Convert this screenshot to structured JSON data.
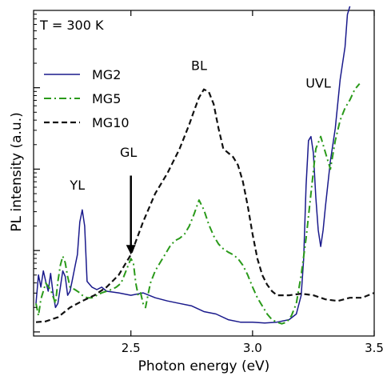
{
  "chart_data": {
    "type": "line",
    "xlabel": "Photon energy (eV)",
    "ylabel": "PL intensity (a.u.)",
    "xlim": [
      2.1,
      3.5
    ],
    "ylim": [
      -0.05,
      3.95
    ],
    "ylog": true,
    "xticks": [
      {
        "value": 2.5,
        "label": "2.5"
      },
      {
        "value": 3.0,
        "label": "3.0"
      },
      {
        "value": 3.5,
        "label": "3.5"
      }
    ],
    "yticks_major": [
      0,
      1,
      2,
      3
    ],
    "yticks_minor_per_decade": 8,
    "grid": false,
    "legend_position": "upper-left",
    "temperature_label": "T = 300 K",
    "series": [
      {
        "name": "MG2",
        "color": "#1a1a8c",
        "dash": "solid",
        "x": [
          2.11,
          2.12,
          2.13,
          2.14,
          2.15,
          2.16,
          2.17,
          2.18,
          2.19,
          2.2,
          2.21,
          2.22,
          2.23,
          2.24,
          2.25,
          2.26,
          2.27,
          2.28,
          2.29,
          2.3,
          2.31,
          2.32,
          2.34,
          2.36,
          2.38,
          2.4,
          2.45,
          2.5,
          2.55,
          2.6,
          2.65,
          2.7,
          2.75,
          2.8,
          2.85,
          2.9,
          2.95,
          3.0,
          3.05,
          3.1,
          3.15,
          3.18,
          3.2,
          3.21,
          3.22,
          3.23,
          3.24,
          3.25,
          3.26,
          3.27,
          3.28,
          3.29,
          3.3,
          3.32,
          3.34,
          3.36,
          3.38,
          3.39,
          3.4
        ],
        "values": [
          0.35,
          0.7,
          0.55,
          0.75,
          0.62,
          0.5,
          0.72,
          0.48,
          0.3,
          0.35,
          0.55,
          0.75,
          0.68,
          0.45,
          0.5,
          0.65,
          0.8,
          0.95,
          1.35,
          1.5,
          1.3,
          0.62,
          0.55,
          0.52,
          0.55,
          0.5,
          0.48,
          0.45,
          0.48,
          0.42,
          0.38,
          0.35,
          0.32,
          0.25,
          0.22,
          0.15,
          0.12,
          0.12,
          0.11,
          0.12,
          0.15,
          0.22,
          0.45,
          0.9,
          1.8,
          2.35,
          2.4,
          2.2,
          1.65,
          1.25,
          1.05,
          1.25,
          1.55,
          2.1,
          2.5,
          3.1,
          3.5,
          3.9,
          4.0
        ]
      },
      {
        "name": "MG5",
        "color": "#2a9a1a",
        "dash": "dashdot",
        "x": [
          2.11,
          2.12,
          2.13,
          2.15,
          2.17,
          2.19,
          2.2,
          2.21,
          2.22,
          2.23,
          2.24,
          2.25,
          2.27,
          2.29,
          2.3,
          2.32,
          2.34,
          2.36,
          2.38,
          2.4,
          2.42,
          2.44,
          2.46,
          2.48,
          2.5,
          2.51,
          2.52,
          2.53,
          2.54,
          2.55,
          2.56,
          2.57,
          2.58,
          2.6,
          2.62,
          2.64,
          2.66,
          2.68,
          2.7,
          2.72,
          2.74,
          2.76,
          2.78,
          2.8,
          2.82,
          2.84,
          2.86,
          2.88,
          2.9,
          2.92,
          2.94,
          2.96,
          2.98,
          3.0,
          3.02,
          3.04,
          3.06,
          3.08,
          3.1,
          3.12,
          3.14,
          3.16,
          3.18,
          3.2,
          3.22,
          3.24,
          3.26,
          3.28,
          3.3,
          3.32,
          3.34,
          3.36,
          3.38,
          3.4,
          3.42,
          3.44
        ],
        "values": [
          0.35,
          0.2,
          0.4,
          0.6,
          0.52,
          0.35,
          0.62,
          0.82,
          0.93,
          0.85,
          0.68,
          0.55,
          0.52,
          0.48,
          0.45,
          0.42,
          0.42,
          0.45,
          0.48,
          0.5,
          0.52,
          0.55,
          0.6,
          0.75,
          0.9,
          0.85,
          0.6,
          0.45,
          0.48,
          0.35,
          0.3,
          0.45,
          0.6,
          0.75,
          0.85,
          0.95,
          1.05,
          1.12,
          1.15,
          1.2,
          1.3,
          1.45,
          1.62,
          1.5,
          1.32,
          1.18,
          1.08,
          1.02,
          0.98,
          0.95,
          0.9,
          0.82,
          0.7,
          0.55,
          0.42,
          0.32,
          0.22,
          0.15,
          0.12,
          0.1,
          0.12,
          0.2,
          0.35,
          0.7,
          1.15,
          1.7,
          2.25,
          2.4,
          2.2,
          2.0,
          2.35,
          2.6,
          2.75,
          2.85,
          2.98,
          3.05
        ]
      },
      {
        "name": "MG10",
        "color": "#111111",
        "dash": "dashed",
        "x": [
          2.11,
          2.15,
          2.2,
          2.25,
          2.3,
          2.35,
          2.4,
          2.45,
          2.5,
          2.55,
          2.6,
          2.65,
          2.7,
          2.72,
          2.74,
          2.76,
          2.78,
          2.8,
          2.82,
          2.84,
          2.86,
          2.88,
          2.9,
          2.92,
          2.94,
          2.96,
          2.98,
          3.0,
          3.02,
          3.04,
          3.06,
          3.08,
          3.1,
          3.15,
          3.2,
          3.25,
          3.3,
          3.35,
          3.4,
          3.45,
          3.5
        ],
        "values": [
          0.12,
          0.13,
          0.18,
          0.3,
          0.38,
          0.45,
          0.55,
          0.7,
          0.95,
          1.35,
          1.7,
          1.95,
          2.25,
          2.4,
          2.55,
          2.72,
          2.88,
          2.98,
          2.95,
          2.8,
          2.5,
          2.25,
          2.2,
          2.15,
          2.05,
          1.85,
          1.55,
          1.2,
          0.9,
          0.7,
          0.58,
          0.5,
          0.45,
          0.45,
          0.47,
          0.45,
          0.4,
          0.38,
          0.42,
          0.42,
          0.48
        ]
      }
    ],
    "annotations": [
      {
        "text": "YL",
        "x": 2.28,
        "y": 1.75
      },
      {
        "text": "GL",
        "x": 2.49,
        "y": 2.15
      },
      {
        "text": "BL",
        "x": 2.78,
        "y": 3.22
      },
      {
        "text": "UVL",
        "x": 3.27,
        "y": 3.0
      }
    ],
    "arrow": {
      "x": 2.5,
      "y_start": 1.92,
      "y_end": 0.95
    }
  }
}
